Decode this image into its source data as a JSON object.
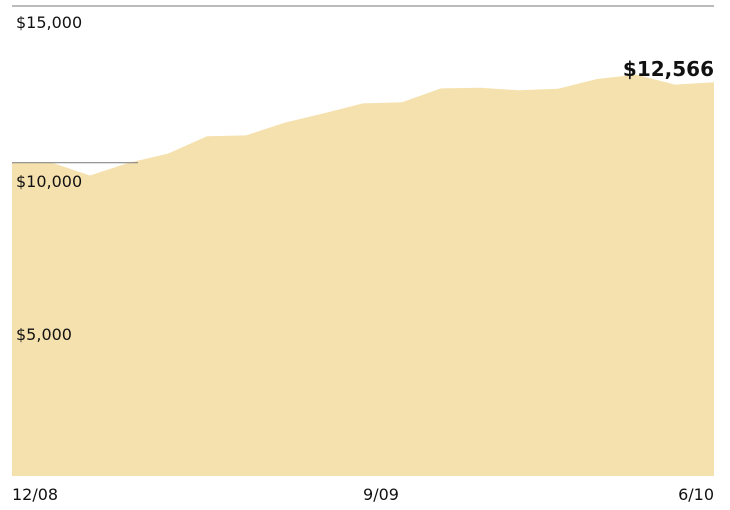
{
  "chart_data": {
    "type": "area",
    "x": [
      "12/08",
      "1/09",
      "2/09",
      "3/09",
      "4/09",
      "5/09",
      "6/09",
      "7/09",
      "8/09",
      "9/09",
      "10/09",
      "11/09",
      "12/09",
      "1/10",
      "2/10",
      "3/10",
      "4/10",
      "5/10",
      "6/10"
    ],
    "values": [
      10000,
      10010,
      9590,
      10000,
      10290,
      10840,
      10870,
      11280,
      11580,
      11890,
      11930,
      12370,
      12390,
      12310,
      12360,
      12670,
      12810,
      12490,
      12566
    ],
    "ylim": [
      0,
      15000
    ],
    "yticks": [
      "$15,000",
      "$10,000",
      "$5,000"
    ],
    "xticks": [
      "12/08",
      "9/09",
      "6/10"
    ],
    "reference_value": 10000,
    "end_label": "$12,566",
    "fill_color": "#f5e1ae",
    "grid": false,
    "legend": "none"
  }
}
